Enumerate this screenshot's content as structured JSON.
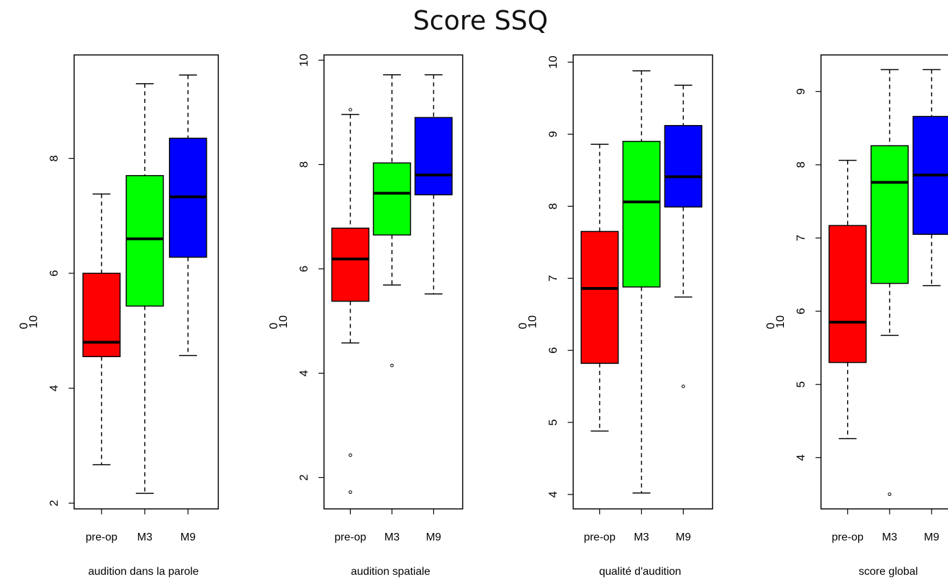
{
  "title": "Score SSQ",
  "chart_data": [
    {
      "type": "boxplot",
      "xlabel": "audition dans la parole",
      "ylabel": [
        "0",
        "10"
      ],
      "categories": [
        "pre-op",
        "M3",
        "M9"
      ],
      "ylim": [
        1.9,
        9.8
      ],
      "yticks": [
        2,
        4,
        6,
        8
      ],
      "series": [
        {
          "category": "pre-op",
          "color": "#ff0000",
          "whisker_low": 2.67,
          "q1": 4.55,
          "median": 4.8,
          "q3": 6.0,
          "whisker_high": 7.38,
          "outliers": []
        },
        {
          "category": "M3",
          "color": "#00ff00",
          "whisker_low": 2.17,
          "q1": 5.43,
          "median": 6.6,
          "q3": 7.7,
          "whisker_high": 9.3,
          "outliers": []
        },
        {
          "category": "M9",
          "color": "#0000ff",
          "whisker_low": 4.57,
          "q1": 6.28,
          "median": 7.33,
          "q3": 8.35,
          "whisker_high": 9.45,
          "outliers": []
        }
      ]
    },
    {
      "type": "boxplot",
      "xlabel": "audition spatiale",
      "ylabel": [
        "0",
        "10"
      ],
      "categories": [
        "pre-op",
        "M3",
        "M9"
      ],
      "ylim": [
        1.4,
        10.1
      ],
      "yticks": [
        2,
        4,
        6,
        8,
        10
      ],
      "series": [
        {
          "category": "pre-op",
          "color": "#ff0000",
          "whisker_low": 4.58,
          "q1": 5.38,
          "median": 6.19,
          "q3": 6.78,
          "whisker_high": 8.96,
          "outliers": [
            9.05,
            2.43,
            1.72
          ]
        },
        {
          "category": "M3",
          "color": "#00ff00",
          "whisker_low": 5.69,
          "q1": 6.65,
          "median": 7.45,
          "q3": 8.03,
          "whisker_high": 9.72,
          "outliers": [
            4.15
          ]
        },
        {
          "category": "M9",
          "color": "#0000ff",
          "whisker_low": 5.52,
          "q1": 7.42,
          "median": 7.8,
          "q3": 8.9,
          "whisker_high": 9.72,
          "outliers": []
        }
      ]
    },
    {
      "type": "boxplot",
      "xlabel": "qualité d'audition",
      "ylabel": [
        "0",
        "10"
      ],
      "categories": [
        "pre-op",
        "M3",
        "M9"
      ],
      "ylim": [
        3.8,
        10.1
      ],
      "yticks": [
        4,
        5,
        6,
        7,
        8,
        9,
        10
      ],
      "series": [
        {
          "category": "pre-op",
          "color": "#ff0000",
          "whisker_low": 4.88,
          "q1": 5.82,
          "median": 6.86,
          "q3": 7.65,
          "whisker_high": 8.86,
          "outliers": []
        },
        {
          "category": "M3",
          "color": "#00ff00",
          "whisker_low": 4.02,
          "q1": 6.88,
          "median": 8.06,
          "q3": 8.9,
          "whisker_high": 9.88,
          "outliers": []
        },
        {
          "category": "M9",
          "color": "#0000ff",
          "whisker_low": 6.74,
          "q1": 7.99,
          "median": 8.41,
          "q3": 9.12,
          "whisker_high": 9.68,
          "outliers": [
            5.5
          ]
        }
      ]
    },
    {
      "type": "boxplot",
      "xlabel": "score global",
      "ylabel": [
        "0",
        "10"
      ],
      "categories": [
        "pre-op",
        "M3",
        "M9"
      ],
      "ylim": [
        3.3,
        9.5
      ],
      "yticks": [
        4,
        5,
        6,
        7,
        8,
        9
      ],
      "series": [
        {
          "category": "pre-op",
          "color": "#ff0000",
          "whisker_low": 4.26,
          "q1": 5.3,
          "median": 5.85,
          "q3": 7.17,
          "whisker_high": 8.06,
          "outliers": []
        },
        {
          "category": "M3",
          "color": "#00ff00",
          "whisker_low": 5.67,
          "q1": 6.38,
          "median": 7.76,
          "q3": 8.26,
          "whisker_high": 9.3,
          "outliers": [
            3.5
          ]
        },
        {
          "category": "M9",
          "color": "#0000ff",
          "whisker_low": 6.35,
          "q1": 7.05,
          "median": 7.86,
          "q3": 8.66,
          "whisker_high": 9.3,
          "outliers": []
        }
      ]
    }
  ]
}
